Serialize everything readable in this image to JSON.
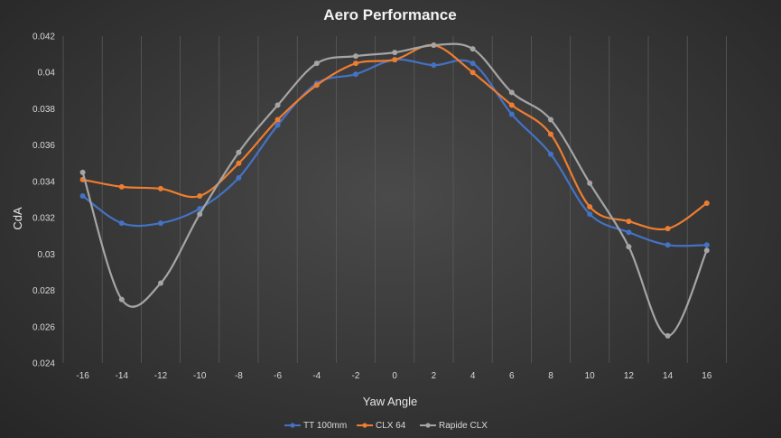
{
  "chart_data": {
    "type": "line",
    "title": "Aero Performance",
    "xlabel": "Yaw Angle",
    "ylabel": "CdA",
    "x": [
      -16,
      -14,
      -12,
      -10,
      -8,
      -6,
      -4,
      -2,
      0,
      2,
      4,
      6,
      8,
      10,
      12,
      14,
      16
    ],
    "x_tick_labels": [
      "-16",
      "-14",
      "-12",
      "-10",
      "-8",
      "-6",
      "-4",
      "-2",
      "0",
      "2",
      "4",
      "6",
      "8",
      "10",
      "12",
      "14",
      "16"
    ],
    "y_tick_labels": [
      "0.024",
      "0.026",
      "0.028",
      "0.03",
      "0.032",
      "0.034",
      "0.036",
      "0.038",
      "0.04",
      "0.042"
    ],
    "xlim": [
      -17,
      18
    ],
    "ylim": [
      0.024,
      0.042
    ],
    "grid": "vertical",
    "legend_position": "bottom",
    "smooth": true,
    "series": [
      {
        "name": "TT 100mm",
        "color": "#4472C4",
        "values": [
          0.0332,
          0.0317,
          0.0317,
          0.0325,
          0.0342,
          0.0371,
          0.0394,
          0.0399,
          0.0407,
          0.0404,
          0.0405,
          0.0377,
          0.0355,
          0.0322,
          0.0312,
          0.0305,
          0.0305
        ]
      },
      {
        "name": "CLX 64",
        "color": "#ED7D31",
        "values": [
          0.0341,
          0.0337,
          0.0336,
          0.0332,
          0.035,
          0.0374,
          0.0393,
          0.0405,
          0.0407,
          0.0415,
          0.04,
          0.0382,
          0.0366,
          0.0326,
          0.0318,
          0.0314,
          0.0328
        ]
      },
      {
        "name": "Rapide CLX",
        "color": "#A5A5A5",
        "values": [
          0.0345,
          0.0275,
          0.0284,
          0.0322,
          0.0356,
          0.0382,
          0.0405,
          0.0409,
          0.0411,
          0.0415,
          0.0413,
          0.0389,
          0.0374,
          0.0339,
          0.0304,
          0.0255,
          0.0302
        ]
      }
    ]
  }
}
